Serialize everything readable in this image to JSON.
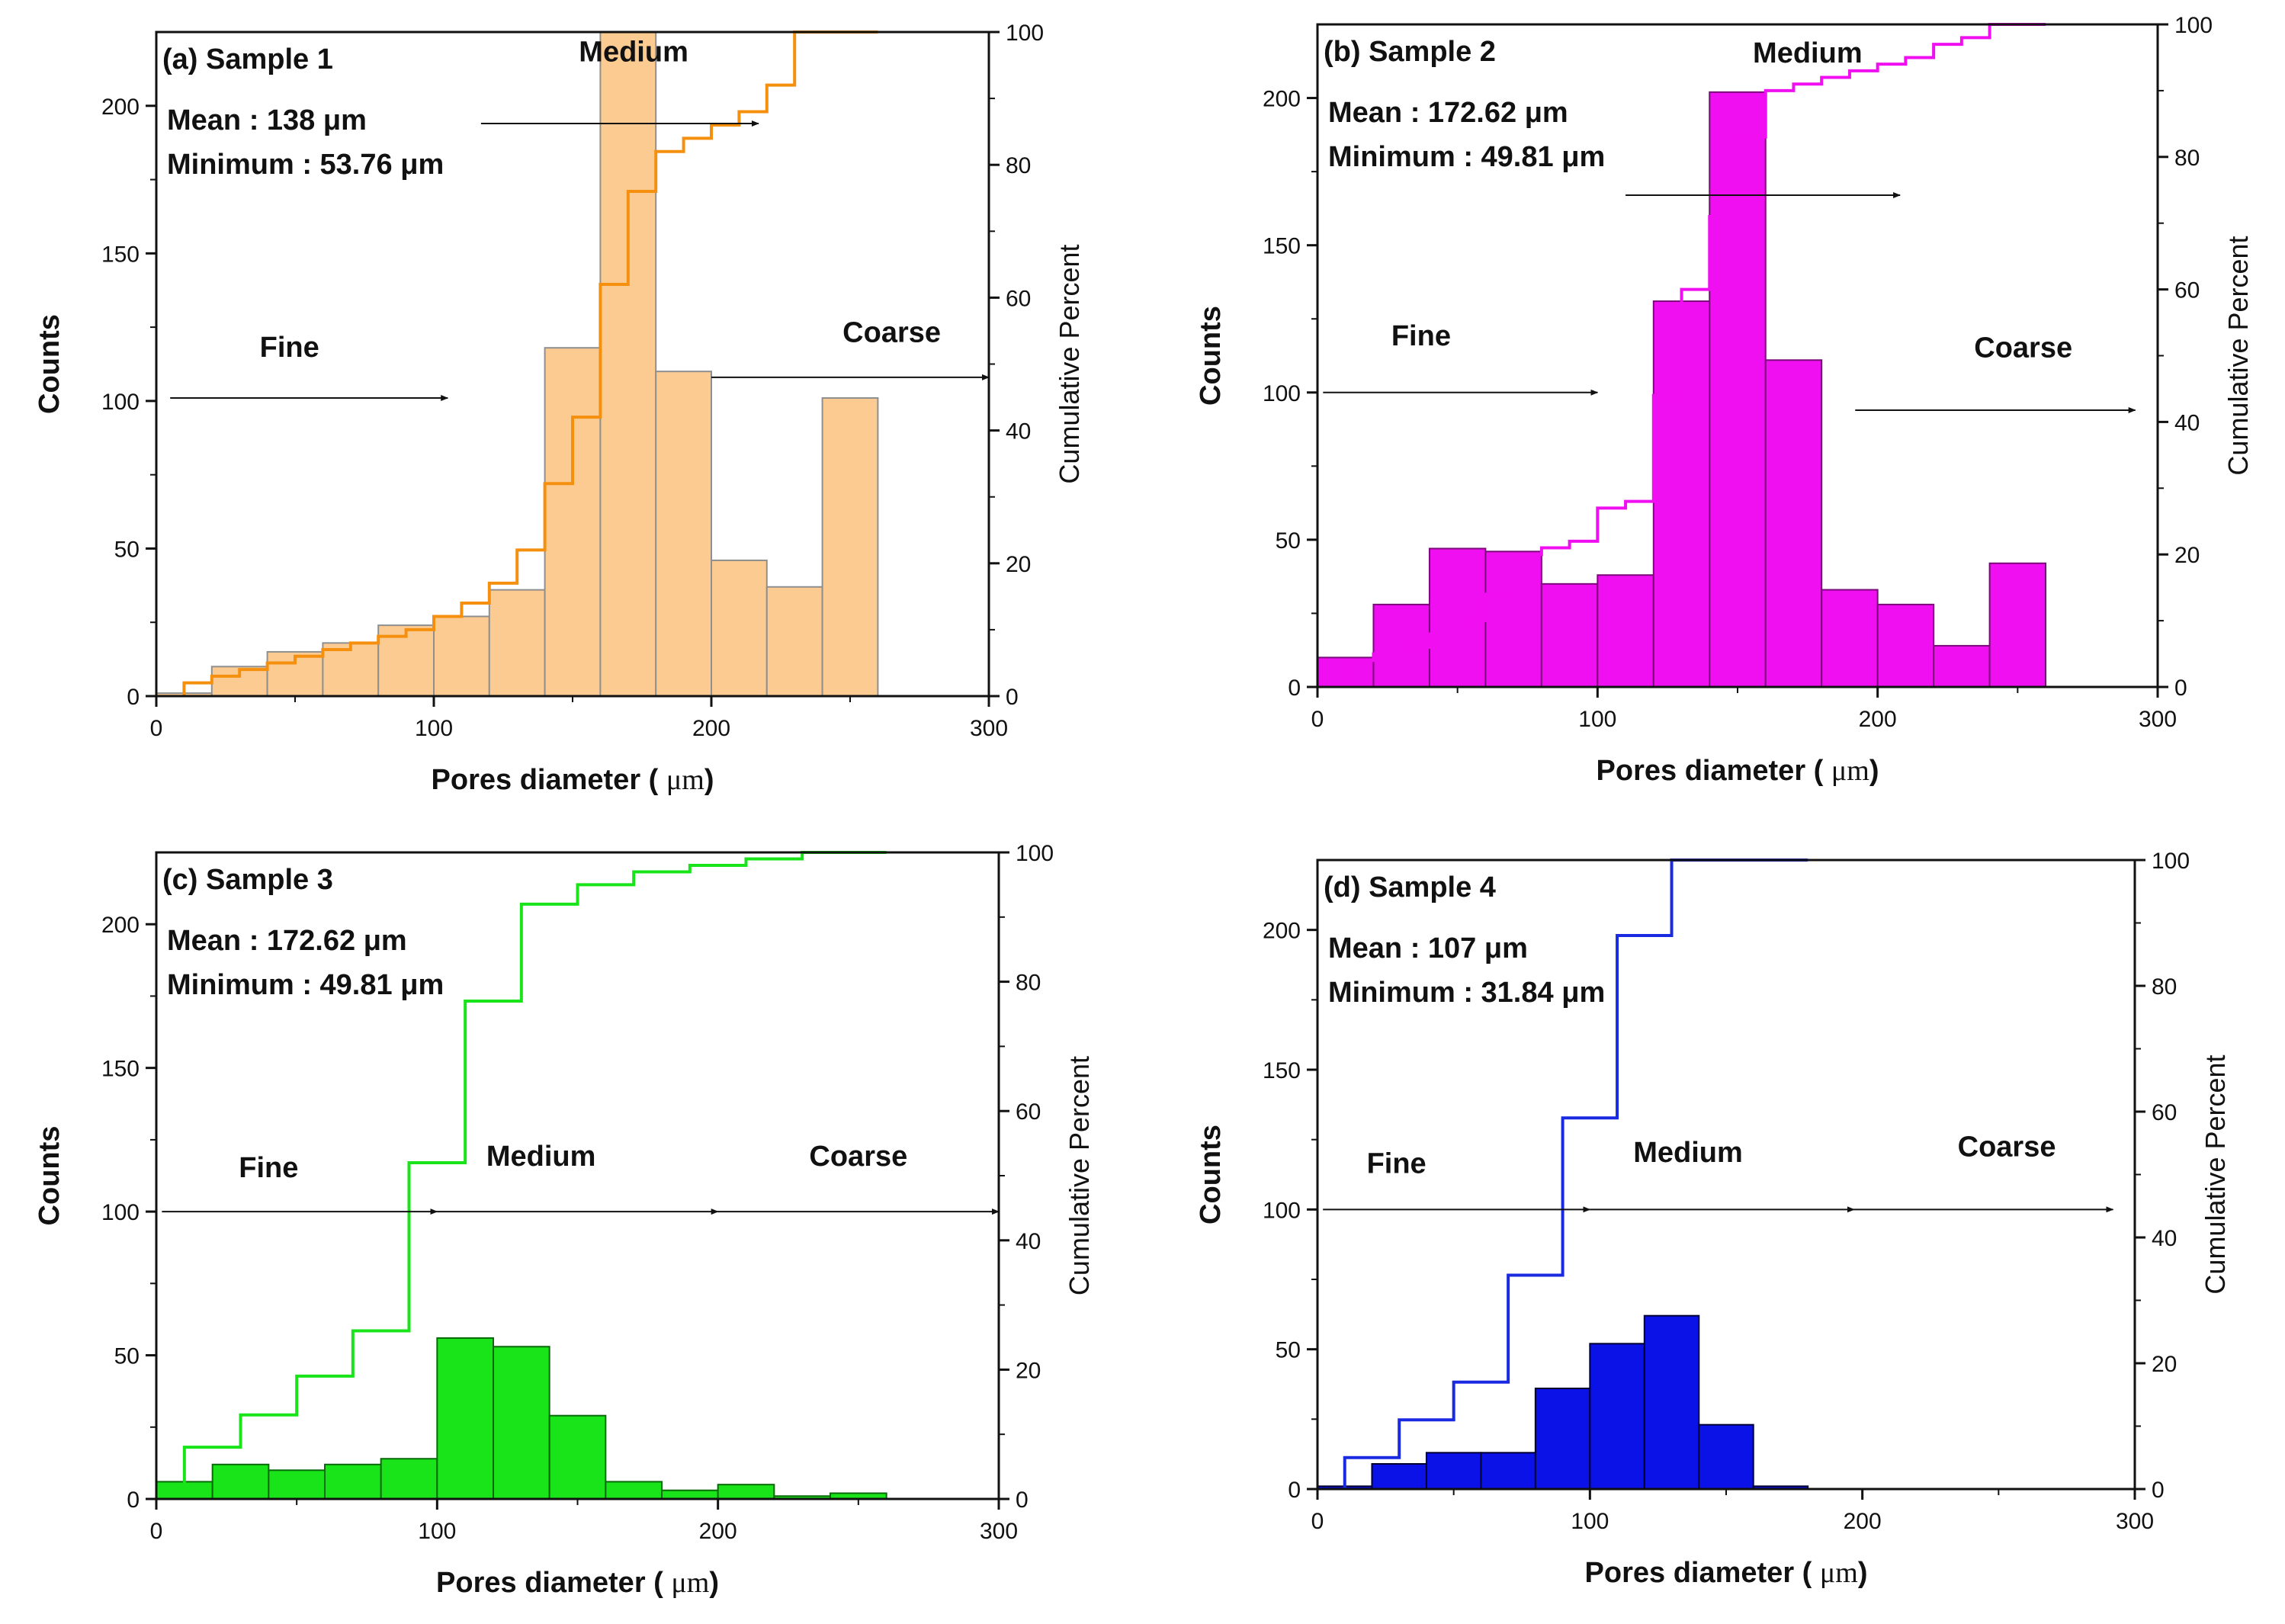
{
  "figure": {
    "x_label_prefix": "Pores diameter ( ",
    "x_label_unit": "μm",
    "x_label_suffix": ")",
    "y_label_left": "Counts",
    "y_label_right": "Cumulative Percent",
    "size_classes": {
      "fine": "Fine",
      "medium": "Medium",
      "coarse": "Coarse"
    }
  },
  "chart_data": [
    {
      "type": "bar",
      "title": "(a) Sample 1",
      "mean_text": "Mean : 138 μm",
      "min_text": "Minimum : 53.76 μm",
      "xlim": [
        0,
        300
      ],
      "ylim": [
        0,
        225
      ],
      "y2lim": [
        0,
        100
      ],
      "xticks": [
        0,
        100,
        200,
        300
      ],
      "yticks": [
        0,
        50,
        100,
        150,
        200
      ],
      "y2ticks": [
        0,
        20,
        40,
        60,
        80,
        100
      ],
      "fill_color": "#fccb92",
      "stroke_color": "#8f8f8f",
      "line_color": "#f5900f",
      "bins": [
        0,
        20,
        40,
        60,
        80,
        100,
        120,
        140,
        160,
        180,
        200,
        220,
        240,
        260
      ],
      "counts": [
        1,
        10,
        15,
        18,
        24,
        27,
        36,
        118,
        225,
        110,
        46,
        37,
        101
      ],
      "cum_x": [
        10,
        20,
        30,
        40,
        50,
        60,
        70,
        80,
        90,
        100,
        110,
        120,
        130,
        140,
        150,
        160,
        170,
        180,
        190,
        200,
        210,
        220,
        230,
        240,
        250
      ],
      "cum_y": [
        2,
        3,
        4,
        5,
        6,
        7,
        8,
        9,
        10,
        12,
        14,
        17,
        22,
        32,
        42,
        62,
        76,
        82,
        84,
        86,
        88,
        92,
        100,
        100,
        100
      ],
      "arrows": [
        {
          "label": "fine",
          "x1": 5,
          "x2": 105,
          "y": 101,
          "label_x": 48,
          "label_y": 115
        },
        {
          "label": "coarse",
          "x1": 200,
          "x2": 300,
          "y": 108,
          "label_x": 265,
          "label_y": 120
        },
        {
          "label": "medium",
          "x1": 117,
          "x2": 217,
          "y": 194,
          "label_x": 172,
          "label_y": 215
        }
      ]
    },
    {
      "type": "bar",
      "title": "(b) Sample 2",
      "mean_text": "Mean : 172.62 μm",
      "min_text": "Minimum : 49.81 μm",
      "xlim": [
        0,
        300
      ],
      "ylim": [
        0,
        225
      ],
      "y2lim": [
        0,
        100
      ],
      "xticks": [
        0,
        100,
        200,
        300
      ],
      "yticks": [
        0,
        50,
        100,
        150,
        200
      ],
      "y2ticks": [
        0,
        20,
        40,
        60,
        80,
        100
      ],
      "fill_color": "#f00ff0",
      "stroke_color": "#7a0a7a",
      "line_color": "#f00ff0",
      "bins": [
        0,
        20,
        40,
        60,
        80,
        100,
        120,
        140,
        160,
        180,
        200,
        220,
        240,
        260
      ],
      "counts": [
        10,
        28,
        47,
        46,
        35,
        38,
        131,
        202,
        111,
        33,
        28,
        14,
        42
      ],
      "cum_x": [
        10,
        20,
        30,
        40,
        50,
        60,
        70,
        80,
        90,
        100,
        110,
        120,
        130,
        140,
        150,
        160,
        170,
        180,
        190,
        200,
        210,
        220,
        230,
        240,
        250
      ],
      "cum_y": [
        4,
        5,
        6,
        8,
        10,
        14,
        20,
        21,
        22,
        27,
        28,
        44,
        60,
        71,
        83,
        90,
        91,
        92,
        93,
        94,
        95,
        97,
        98,
        100,
        100
      ],
      "arrows": [
        {
          "label": "fine",
          "x1": 2,
          "x2": 100,
          "y": 100,
          "label_x": 37,
          "label_y": 116
        },
        {
          "label": "coarse",
          "x1": 192,
          "x2": 292,
          "y": 94,
          "label_x": 252,
          "label_y": 112
        },
        {
          "label": "medium",
          "x1": 110,
          "x2": 208,
          "y": 167,
          "label_x": 175,
          "label_y": 212
        }
      ]
    },
    {
      "type": "bar",
      "title": "(c) Sample 3",
      "mean_text": "Mean : 172.62 μm",
      "min_text": "Minimum : 49.81 μm",
      "xlim": [
        0,
        300
      ],
      "ylim": [
        0,
        225
      ],
      "y2lim": [
        0,
        100
      ],
      "xticks": [
        0,
        100,
        200,
        300
      ],
      "yticks": [
        0,
        50,
        100,
        150,
        200
      ],
      "y2ticks": [
        0,
        20,
        40,
        60,
        80,
        100
      ],
      "fill_color": "#19e419",
      "stroke_color": "#0a6a0a",
      "line_color": "#19e419",
      "bins": [
        0,
        20,
        40,
        60,
        80,
        100,
        120,
        140,
        160,
        180,
        200,
        220,
        240,
        260
      ],
      "counts": [
        6,
        12,
        10,
        12,
        14,
        56,
        53,
        29,
        6,
        3,
        5,
        1,
        2
      ],
      "cum_x": [
        10,
        30,
        50,
        70,
        90,
        110,
        130,
        150,
        170,
        190,
        210,
        230,
        250
      ],
      "cum_y": [
        8,
        13,
        19,
        26,
        52,
        77,
        92,
        95,
        97,
        98,
        99,
        100,
        100
      ],
      "arrows": [
        {
          "label": "fine",
          "x1": 2,
          "x2": 100,
          "y": 100,
          "label_x": 40,
          "label_y": 112
        },
        {
          "label": "medium",
          "x1": 100,
          "x2": 200,
          "y": 100,
          "label_x": 137,
          "label_y": 116
        },
        {
          "label": "coarse",
          "x1": 200,
          "x2": 300,
          "y": 100,
          "label_x": 250,
          "label_y": 116
        }
      ]
    },
    {
      "type": "bar",
      "title": "(d) Sample 4",
      "mean_text": "Mean : 107 μm",
      "min_text": "Minimum : 31.84 μm",
      "xlim": [
        0,
        300
      ],
      "ylim": [
        0,
        225
      ],
      "y2lim": [
        0,
        100
      ],
      "xticks": [
        0,
        100,
        200,
        300
      ],
      "yticks": [
        0,
        50,
        100,
        150,
        200
      ],
      "y2ticks": [
        0,
        20,
        40,
        60,
        80,
        100
      ],
      "fill_color": "#0a12e8",
      "stroke_color": "#000030",
      "line_color": "#1a2ae0",
      "bins": [
        0,
        20,
        40,
        60,
        80,
        100,
        120,
        140,
        160,
        180
      ],
      "counts": [
        1,
        9,
        13,
        13,
        36,
        52,
        62,
        23,
        1
      ],
      "cum_x": [
        10,
        30,
        50,
        70,
        90,
        110,
        130,
        150,
        170
      ],
      "cum_y": [
        5,
        11,
        17,
        34,
        59,
        88,
        100,
        100,
        100
      ],
      "arrows": [
        {
          "label": "fine",
          "x1": 2,
          "x2": 100,
          "y": 100,
          "label_x": 29,
          "label_y": 113
        },
        {
          "label": "medium",
          "x1": 100,
          "x2": 197,
          "y": 100,
          "label_x": 136,
          "label_y": 117
        },
        {
          "label": "coarse",
          "x1": 197,
          "x2": 292,
          "y": 100,
          "label_x": 253,
          "label_y": 119
        }
      ]
    }
  ]
}
